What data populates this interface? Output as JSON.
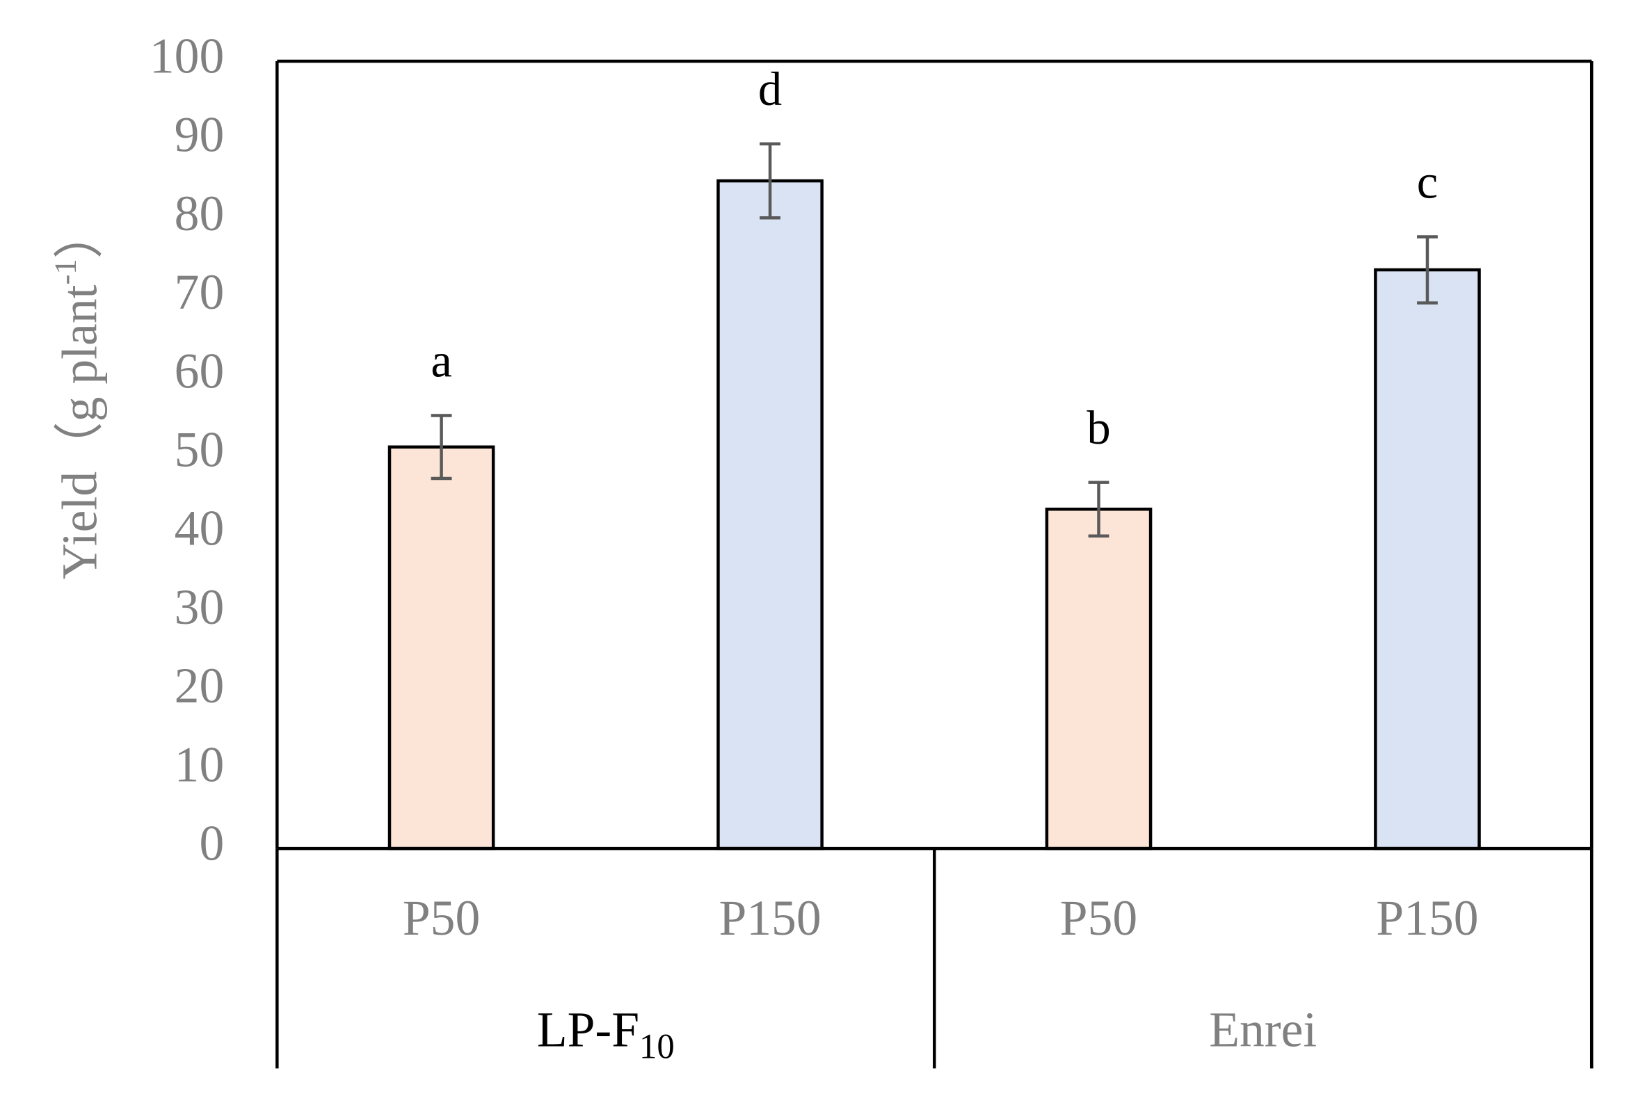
{
  "chart_data": {
    "type": "bar",
    "y_label": {
      "text": "Yield（g plant",
      "sup": "-1",
      "end": "）"
    },
    "categories": [
      "P50",
      "P150",
      "P50",
      "P150"
    ],
    "groups": [
      {
        "label": "LP-F",
        "sub": "10"
      },
      {
        "label": "Enrei"
      }
    ],
    "values": [
      51,
      84.8,
      43.1,
      73.5
    ],
    "errors": [
      4,
      4.7,
      3.4,
      4.2
    ],
    "annotations": [
      "a",
      "d",
      "b",
      "c"
    ],
    "colors": [
      "#fce4d6",
      "#dae3f3",
      "#fce4d6",
      "#dae3f3"
    ],
    "ylim": [
      0,
      100
    ],
    "yticks": [
      0,
      10,
      20,
      30,
      40,
      50,
      60,
      70,
      80,
      90,
      100
    ]
  }
}
